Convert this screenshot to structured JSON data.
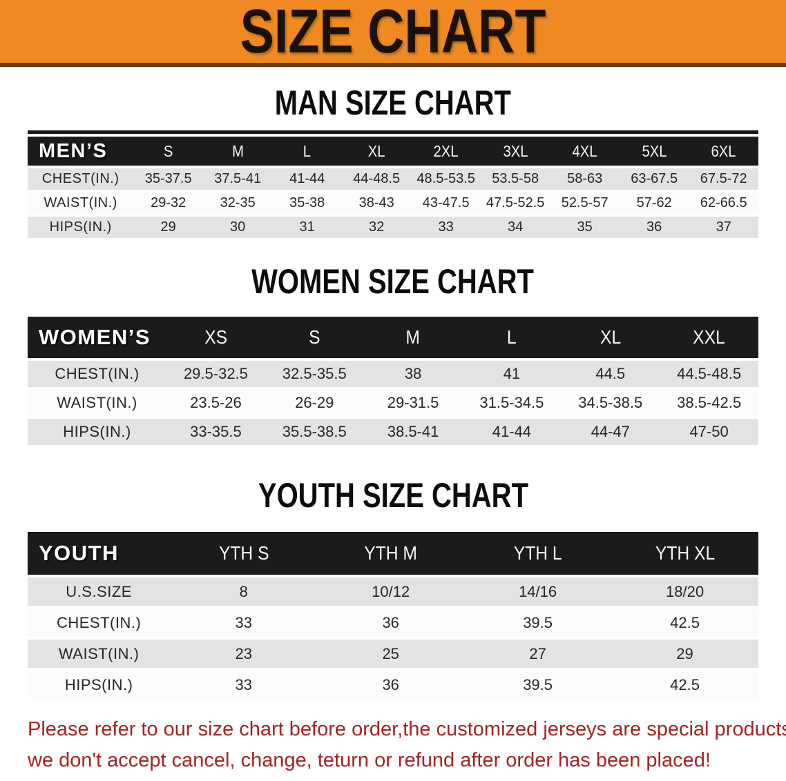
{
  "banner": {
    "title": "SIZE CHART",
    "bg_color": "#ee8a21"
  },
  "sections": [
    {
      "heading": "MAN SIZE CHART",
      "table": {
        "header_label": "MEN’S",
        "columns": [
          "S",
          "M",
          "L",
          "XL",
          "2XL",
          "3XL",
          "4XL",
          "5XL",
          "6XL"
        ],
        "rows": [
          {
            "label": "CHEST(IN.)",
            "values": [
              "35-37.5",
              "37.5-41",
              "41-44",
              "44-48.5",
              "48.5-53.5",
              "53.5-58",
              "58-63",
              "63-67.5",
              "67.5-72"
            ]
          },
          {
            "label": "WAIST(IN.)",
            "values": [
              "29-32",
              "32-35",
              "35-38",
              "38-43",
              "43-47.5",
              "47.5-52.5",
              "52.5-57",
              "57-62",
              "62-66.5"
            ]
          },
          {
            "label": "HIPS(IN.)",
            "values": [
              "29",
              "30",
              "31",
              "32",
              "33",
              "34",
              "35",
              "36",
              "37"
            ]
          }
        ]
      }
    },
    {
      "heading": "WOMEN SIZE CHART",
      "table": {
        "header_label": "WOMEN’S",
        "columns": [
          "XS",
          "S",
          "M",
          "L",
          "XL",
          "XXL"
        ],
        "rows": [
          {
            "label": "CHEST(IN.)",
            "values": [
              "29.5-32.5",
              "32.5-35.5",
              "38",
              "41",
              "44.5",
              "44.5-48.5"
            ]
          },
          {
            "label": "WAIST(IN.)",
            "values": [
              "23.5-26",
              "26-29",
              "29-31.5",
              "31.5-34.5",
              "34.5-38.5",
              "38.5-42.5"
            ]
          },
          {
            "label": "HIPS(IN.)",
            "values": [
              "33-35.5",
              "35.5-38.5",
              "38.5-41",
              "41-44",
              "44-47",
              "47-50"
            ]
          }
        ]
      }
    },
    {
      "heading": "YOUTH SIZE CHART",
      "table": {
        "header_label": "YOUTH",
        "columns": [
          "YTH S",
          "YTH M",
          "YTH L",
          "YTH XL"
        ],
        "rows": [
          {
            "label": "U.S.SIZE",
            "values": [
              "8",
              "10/12",
              "14/16",
              "18/20"
            ]
          },
          {
            "label": "CHEST(IN.)",
            "values": [
              "33",
              "36",
              "39.5",
              "42.5"
            ]
          },
          {
            "label": "WAIST(IN.)",
            "values": [
              "23",
              "25",
              "27",
              "29"
            ]
          },
          {
            "label": "HIPS(IN.)",
            "values": [
              "33",
              "36",
              "39.5",
              "42.5"
            ]
          }
        ]
      }
    }
  ],
  "footer": {
    "line1": "Please refer to our size chart before order,the customized jerseys are special products,",
    "line2": "we don't accept cancel, change, teturn or refund after order has been placed!"
  },
  "colors": {
    "banner_orange": "#ee8a21",
    "table_header_black": "#1b1b1b",
    "stripe_gray": "#e3e3e3",
    "note_red": "#a32323"
  }
}
